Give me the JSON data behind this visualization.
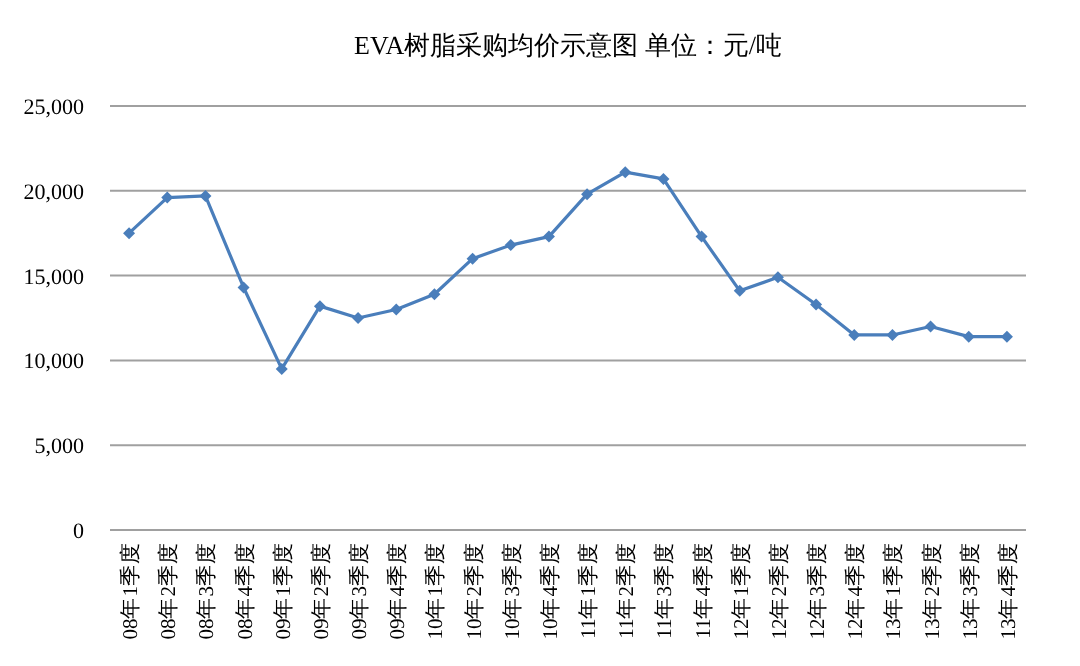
{
  "chart_data": {
    "type": "line",
    "title": "EVA树脂采购均价示意图 单位：元/吨",
    "categories": [
      "08年1季度",
      "08年2季度",
      "08年3季度",
      "08年4季度",
      "09年1季度",
      "09年2季度",
      "09年3季度",
      "09年4季度",
      "10年1季度",
      "10年2季度",
      "10年3季度",
      "10年4季度",
      "11年1季度",
      "11年2季度",
      "11年3季度",
      "11年4季度",
      "12年1季度",
      "12年2季度",
      "12年3季度",
      "12年4季度",
      "13年1季度",
      "13年2季度",
      "13年3季度",
      "13年4季度"
    ],
    "series": [
      {
        "color": "#4a7ebb",
        "values": [
          17500,
          19600,
          19700,
          14300,
          9500,
          13200,
          12500,
          13000,
          13900,
          16000,
          16800,
          17300,
          19800,
          21100,
          20700,
          17300,
          14100,
          14900,
          13300,
          11500,
          11500,
          12000,
          11400,
          11400
        ]
      }
    ],
    "ylim": [
      0,
      25000
    ],
    "yticks": [
      {
        "value": 0,
        "label": "0"
      },
      {
        "value": 5000,
        "label": "5,000"
      },
      {
        "value": 10000,
        "label": "10,000"
      },
      {
        "value": 15000,
        "label": "15,000"
      },
      {
        "value": 20000,
        "label": "20,000"
      },
      {
        "value": 25000,
        "label": "25,000"
      }
    ],
    "grid": "y",
    "marker": "diamond",
    "line_style": "solid"
  }
}
